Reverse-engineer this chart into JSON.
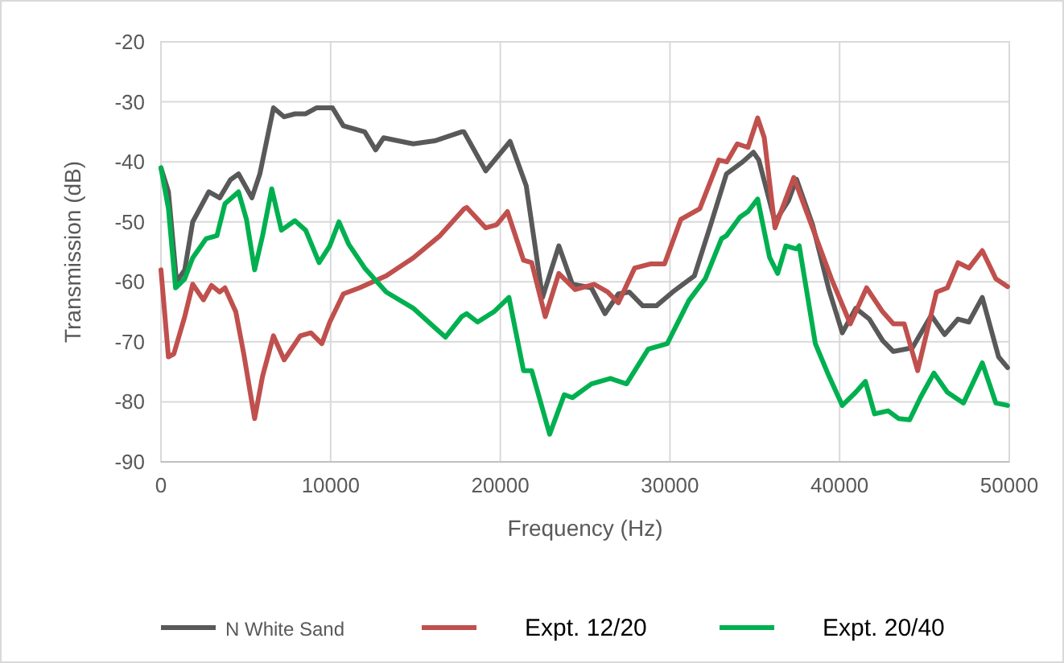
{
  "chart_data": {
    "type": "line",
    "xlabel": "Frequency (Hz)",
    "ylabel": "Transmission (dB)",
    "xlim": [
      0,
      50000
    ],
    "xticks": [
      0,
      10000,
      20000,
      30000,
      40000,
      50000
    ],
    "ylim": [
      -90,
      -20
    ],
    "yticks": [
      -90,
      -80,
      -70,
      -60,
      -50,
      -40,
      -30,
      -20
    ],
    "grid": true,
    "legend": "bottom",
    "line_style": "solid",
    "marker": "none",
    "series": [
      {
        "name": "N White Sand",
        "color": "#595959",
        "x": [
          0,
          440,
          920,
          1400,
          1870,
          2820,
          3460,
          4090,
          4570,
          5360,
          5830,
          6630,
          7260,
          7900,
          8530,
          9160,
          9800,
          10110,
          10750,
          12010,
          12650,
          13120,
          14870,
          16130,
          17720,
          17860,
          19140,
          20580,
          21530,
          22490,
          23450,
          24250,
          25370,
          26170,
          26960,
          27600,
          28400,
          29200,
          30160,
          31440,
          32400,
          33330,
          34290,
          34920,
          35240,
          36190,
          36980,
          37460,
          38410,
          39370,
          40160,
          40950,
          41750,
          42540,
          43170,
          44290,
          45400,
          46190,
          46980,
          47620,
          48410,
          49370,
          49900
        ],
        "values": [
          -41,
          -45,
          -60,
          -58,
          -50,
          -45,
          -46,
          -43,
          -42,
          -46,
          -42,
          -31,
          -32.5,
          -32,
          -32,
          -31,
          -31,
          -31,
          -34,
          -35,
          -38,
          -36,
          -37,
          -36.5,
          -35,
          -35,
          -41.5,
          -36.6,
          -44,
          -62.6,
          -54,
          -60.4,
          -61,
          -65.3,
          -62,
          -61.7,
          -64,
          -64,
          -61.7,
          -59,
          -50.5,
          -42,
          -40,
          -38.4,
          -39.7,
          -50,
          -46.5,
          -42.9,
          -50.5,
          -61.3,
          -68.5,
          -64.4,
          -66.2,
          -69.8,
          -71.6,
          -71,
          -65.6,
          -68.8,
          -66.2,
          -66.7,
          -62.6,
          -72.5,
          -74.3
        ]
      },
      {
        "name": "Expt. 12/20",
        "color": "#c0504d",
        "x": [
          0,
          440,
          760,
          1400,
          1870,
          2500,
          2980,
          3460,
          3770,
          4410,
          4880,
          5520,
          5990,
          6630,
          7260,
          8210,
          8840,
          9480,
          9950,
          10750,
          11700,
          13280,
          14870,
          16450,
          17880,
          18020,
          19140,
          19780,
          20420,
          21370,
          21850,
          22650,
          23450,
          24410,
          25530,
          26330,
          26960,
          27920,
          28880,
          29680,
          30640,
          31760,
          32880,
          33350,
          33970,
          34600,
          35170,
          35560,
          36190,
          37300,
          38100,
          39520,
          40630,
          41590,
          42540,
          43170,
          43810,
          44600,
          45710,
          46350,
          46980,
          47620,
          48410,
          49210,
          49900
        ],
        "values": [
          -58,
          -72.5,
          -72,
          -65.8,
          -60.4,
          -63,
          -60.6,
          -61.7,
          -61,
          -65,
          -72,
          -82.8,
          -75.7,
          -69,
          -73,
          -69,
          -68.5,
          -70.3,
          -66.7,
          -62,
          -61,
          -59,
          -56,
          -52.3,
          -47.8,
          -47.6,
          -51,
          -50.5,
          -48.3,
          -56.4,
          -56.8,
          -65.8,
          -58.6,
          -61.3,
          -60.4,
          -61.7,
          -63.5,
          -57.7,
          -57,
          -57,
          -49.6,
          -47.8,
          -39.7,
          -40,
          -37,
          -37.6,
          -32.7,
          -36,
          -51,
          -42.6,
          -48.7,
          -59.5,
          -67,
          -61,
          -65,
          -67,
          -67,
          -74.8,
          -61.7,
          -61,
          -56.8,
          -57.7,
          -54.8,
          -59.5,
          -60.8
        ]
      },
      {
        "name": "Expt. 20/40",
        "color": "#00b050",
        "x": [
          0,
          440,
          860,
          1400,
          1870,
          2660,
          3300,
          3770,
          4570,
          5040,
          5520,
          5990,
          6530,
          7100,
          7890,
          8530,
          9320,
          9950,
          10490,
          11060,
          12010,
          13280,
          14870,
          16130,
          16770,
          17720,
          18020,
          18660,
          19620,
          20510,
          21370,
          21850,
          22910,
          23770,
          24250,
          25370,
          26490,
          27440,
          28720,
          29840,
          31120,
          32080,
          33040,
          33330,
          34130,
          34600,
          35170,
          35870,
          36350,
          36830,
          37460,
          37620,
          38570,
          39370,
          40160,
          40950,
          41520,
          42060,
          42860,
          43490,
          44130,
          44760,
          45560,
          46350,
          47300,
          48410,
          49210,
          49900
        ],
        "values": [
          -41,
          -47.8,
          -61,
          -59.5,
          -56,
          -52.8,
          -52.3,
          -47,
          -45,
          -49.6,
          -58,
          -52.3,
          -44.5,
          -51.4,
          -49.8,
          -51.4,
          -56.8,
          -54,
          -50,
          -53.7,
          -57.7,
          -61.7,
          -64.4,
          -67.6,
          -69.2,
          -65.8,
          -65.3,
          -66.7,
          -65,
          -62.6,
          -74.8,
          -74.8,
          -85.4,
          -78.8,
          -79.3,
          -77,
          -76.1,
          -77,
          -71.2,
          -70.3,
          -63.1,
          -59.5,
          -52.8,
          -52.3,
          -49.2,
          -48.3,
          -46.2,
          -55.9,
          -58.6,
          -54,
          -54.5,
          -54,
          -70.3,
          -75.7,
          -80.6,
          -78.4,
          -76.6,
          -82,
          -81.5,
          -82.8,
          -83,
          -79.3,
          -75.2,
          -78.4,
          -80.2,
          -73.5,
          -80.2,
          -80.6
        ]
      }
    ]
  }
}
